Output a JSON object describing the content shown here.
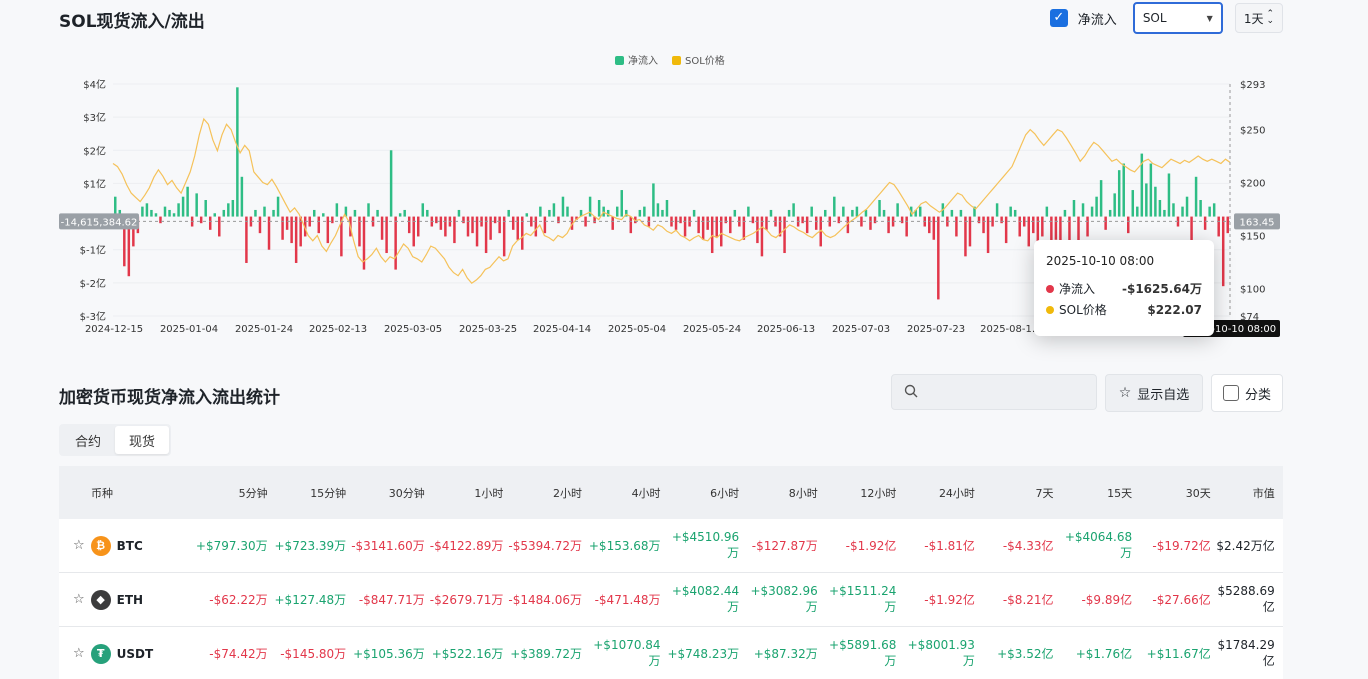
{
  "header": {
    "title": "SOL现货流入/流出",
    "checkbox_label": "净流入",
    "coin_select": "SOL",
    "interval": "1天"
  },
  "legend": {
    "items": [
      {
        "label": "净流入",
        "color": "#2ebd85"
      },
      {
        "label": "SOL价格",
        "color": "#f0b90b"
      }
    ]
  },
  "chart_data": {
    "type": "bar",
    "left_axis": {
      "ticks": [
        "$4亿",
        "$3亿",
        "$2亿",
        "$1亿",
        "$-1亿",
        "$-2亿",
        "$-3亿"
      ],
      "values": [
        4,
        3,
        2,
        1,
        -1,
        -2,
        -3
      ],
      "range": [
        -3,
        4
      ]
    },
    "right_axis": {
      "ticks": [
        "$293",
        "$250",
        "$200",
        "$150",
        "$100",
        "$74"
      ],
      "values": [
        293,
        250,
        200,
        150,
        100,
        74
      ],
      "range": [
        74,
        293
      ]
    },
    "x_ticks": [
      "2024-12-15",
      "2025-01-04",
      "2025-01-24",
      "2025-02-13",
      "2025-03-05",
      "2025-03-25",
      "2025-04-14",
      "2025-05-04",
      "2025-05-24",
      "2025-06-13",
      "2025-07-03",
      "2025-07-23",
      "2025-08-1…"
    ],
    "crosshair_left_label": "-14,615,384.62",
    "crosshair_right_label": "163.45",
    "crosshair_date_label": "2025-10-10 08:00",
    "series": [
      {
        "name": "净流入",
        "color_pos": "#2ebd85",
        "color_neg": "#e2374a",
        "values": [
          0.6,
          0.2,
          -1.5,
          -1.8,
          -0.9,
          -0.5,
          0.3,
          0.4,
          0.2,
          0.1,
          -0.2,
          0.3,
          0.2,
          0.1,
          0.4,
          0.6,
          0.9,
          -0.3,
          0.7,
          -0.2,
          0.5,
          -0.4,
          0.1,
          -0.6,
          0.2,
          0.4,
          0.5,
          3.9,
          1.2,
          -1.4,
          -0.3,
          0.2,
          -0.5,
          0.3,
          -1.0,
          0.2,
          0.6,
          -0.7,
          -0.4,
          -0.8,
          -1.4,
          -0.9,
          -0.6,
          -0.3,
          0.2,
          -0.5,
          0.1,
          -0.8,
          -0.2,
          0.4,
          -1.2,
          0.3,
          -0.6,
          0.2,
          -0.9,
          -1.6,
          0.4,
          -0.3,
          0.2,
          -0.7,
          -1.1,
          2.0,
          -1.6,
          0.1,
          0.2,
          -0.5,
          -0.9,
          -0.6,
          0.4,
          0.2,
          -0.3,
          -0.2,
          -0.4,
          -0.6,
          -0.3,
          -0.8,
          0.2,
          -0.2,
          -0.6,
          -0.5,
          -0.9,
          -0.3,
          -1.1,
          -0.7,
          -0.2,
          -0.5,
          -1.2,
          0.2,
          -0.4,
          -0.7,
          -1.0,
          0.1,
          -0.3,
          -0.6,
          0.3,
          -0.5,
          0.2,
          0.4,
          -0.2,
          0.6,
          0.3,
          -0.4,
          -0.1,
          0.2,
          -0.3,
          0.6,
          -0.2,
          0.5,
          0.3,
          0.2,
          -0.4,
          0.3,
          0.8,
          0.2,
          -0.5,
          -0.2,
          0.2,
          0.3,
          -0.3,
          1.0,
          0.4,
          0.2,
          0.5,
          -0.3,
          -0.4,
          -0.2,
          -0.6,
          -0.3,
          0.2,
          -0.5,
          -0.7,
          -0.4,
          -1.1,
          -0.6,
          -0.9,
          -0.2,
          -0.5,
          0.2,
          -0.3,
          -0.7,
          0.3,
          -0.2,
          -0.8,
          -1.2,
          -0.4,
          0.2,
          -0.3,
          -0.6,
          -1.1,
          0.2,
          0.4,
          -0.3,
          -0.2,
          -0.5,
          0.3,
          -0.4,
          -0.9,
          0.2,
          -0.3,
          0.6,
          -0.2,
          0.3,
          -0.5,
          0.2,
          0.3,
          -0.3,
          0.2,
          -0.4,
          -0.2,
          0.5,
          0.2,
          -0.5,
          -0.3,
          0.4,
          -0.2,
          -0.6,
          0.3,
          0.2,
          0.3,
          -0.3,
          -0.5,
          -0.7,
          -2.5,
          0.4,
          -0.3,
          0.2,
          -0.6,
          0.2,
          -1.2,
          -0.9,
          0.3,
          -0.2,
          -0.5,
          -1.1,
          -0.3,
          0.4,
          -0.2,
          -0.8,
          0.3,
          0.2,
          -0.6,
          -0.3,
          -0.9,
          -0.5,
          -1.2,
          -0.6,
          0.3,
          -1.8,
          -0.7,
          -1.4,
          0.2,
          -0.9,
          0.5,
          -1.1,
          0.4,
          -0.6,
          0.3,
          0.6,
          1.1,
          -0.4,
          0.2,
          0.7,
          1.4,
          1.6,
          -0.5,
          0.8,
          0.3,
          1.9,
          1.0,
          1.6,
          0.9,
          0.5,
          0.2,
          1.3,
          0.4,
          -0.3,
          0.3,
          0.6,
          -0.9,
          1.2,
          0.5,
          -0.4,
          0.3,
          0.4,
          -0.6,
          -2.1,
          -0.5
        ]
      },
      {
        "name": "SOL价格",
        "color": "#f5c25a",
        "values": [
          218,
          215,
          208,
          198,
          190,
          186,
          182,
          188,
          195,
          205,
          212,
          206,
          198,
          202,
          195,
          190,
          200,
          210,
          225,
          245,
          260,
          255,
          240,
          230,
          245,
          255,
          250,
          238,
          228,
          235,
          230,
          210,
          205,
          200,
          198,
          203,
          196,
          188,
          180,
          172,
          176,
          170,
          160,
          150,
          145,
          150,
          140,
          135,
          143,
          150,
          160,
          170,
          163,
          145,
          130,
          125,
          128,
          132,
          138,
          130,
          125,
          130,
          128,
          135,
          142,
          138,
          130,
          128,
          125,
          132,
          140,
          138,
          133,
          128,
          120,
          115,
          112,
          118,
          110,
          105,
          108,
          112,
          118,
          120,
          125,
          130,
          126,
          128,
          140,
          145,
          148,
          152,
          150,
          155,
          160,
          150,
          148,
          145,
          150,
          148,
          152,
          160,
          165,
          168,
          170,
          172,
          168,
          165,
          172,
          170,
          168,
          166,
          165,
          170,
          168,
          164,
          165,
          160,
          158,
          155,
          160,
          158,
          154,
          152,
          155,
          150,
          148,
          145,
          148,
          150,
          146,
          145,
          150,
          148,
          152,
          150,
          148,
          146,
          145,
          148,
          150,
          152,
          155,
          158,
          155,
          150,
          148,
          152,
          156,
          160,
          158,
          155,
          153,
          150,
          148,
          152,
          155,
          150,
          148,
          150,
          154,
          158,
          162,
          165,
          168,
          172,
          175,
          180,
          185,
          190,
          195,
          200,
          198,
          192,
          185,
          178,
          170,
          175,
          180,
          182,
          178,
          175,
          172,
          175,
          180,
          185,
          190,
          188,
          182,
          178,
          175,
          180,
          185,
          190,
          195,
          200,
          205,
          210,
          215,
          225,
          235,
          245,
          250,
          246,
          240,
          235,
          240,
          245,
          250,
          248,
          242,
          235,
          228,
          220,
          225,
          232,
          238,
          235,
          230,
          225,
          220,
          222,
          218,
          215,
          212,
          210,
          215,
          220,
          222,
          218,
          216,
          214,
          218,
          222,
          220,
          218,
          221,
          219,
          222,
          225,
          222,
          220,
          222,
          220,
          218,
          222,
          219
        ]
      }
    ]
  },
  "tooltip": {
    "date": "2025-10-10 08:00",
    "rows": [
      {
        "label": "净流入",
        "value": "-$1625.64万",
        "color": "#e2374a"
      },
      {
        "label": "SOL价格",
        "value": "$222.07",
        "color": "#f0b90b"
      }
    ]
  },
  "stats": {
    "title": "加密货币现货净流入流出统计",
    "search_placeholder": "",
    "fav_button": "显示自选",
    "category_label": "分类",
    "tabs": [
      "合约",
      "现货"
    ],
    "columns": [
      "币种",
      "5分钟",
      "15分钟",
      "30分钟",
      "1小时",
      "2小时",
      "4小时",
      "6小时",
      "8小时",
      "12小时",
      "24小时",
      "7天",
      "15天",
      "30天",
      "市值"
    ],
    "rows": [
      {
        "symbol": "BTC",
        "icon": "bitcoin-icon",
        "color": "#f7931a",
        "glyph": "₿",
        "values": [
          "+$797.30万",
          "+$723.39万",
          "-$3141.60万",
          "-$4122.89万",
          "-$5394.72万",
          "+$153.68万",
          "+$4510.96万",
          "-$127.87万",
          "-$1.92亿",
          "-$1.81亿",
          "-$4.33亿",
          "+$4064.68万",
          "-$19.72亿"
        ],
        "market_cap": "$2.42万亿"
      },
      {
        "symbol": "ETH",
        "icon": "ethereum-icon",
        "color": "#3c3c3d",
        "glyph": "◆",
        "values": [
          "-$62.22万",
          "+$127.48万",
          "-$847.71万",
          "-$2679.71万",
          "-$1484.06万",
          "-$471.48万",
          "+$4082.44万",
          "+$3082.96万",
          "+$1511.24万",
          "-$1.92亿",
          "-$8.21亿",
          "-$9.89亿",
          "-$27.66亿"
        ],
        "market_cap": "$5288.69亿"
      },
      {
        "symbol": "USDT",
        "icon": "tether-icon",
        "color": "#26a17b",
        "glyph": "₮",
        "values": [
          "-$74.42万",
          "-$145.80万",
          "+$105.36万",
          "+$522.16万",
          "+$389.72万",
          "+$1070.84万",
          "+$748.23万",
          "+$87.32万",
          "+$5891.68万",
          "+$8001.93万",
          "+$3.52亿",
          "+$1.76亿",
          "+$11.67亿"
        ],
        "market_cap": "$1784.29亿"
      }
    ]
  }
}
